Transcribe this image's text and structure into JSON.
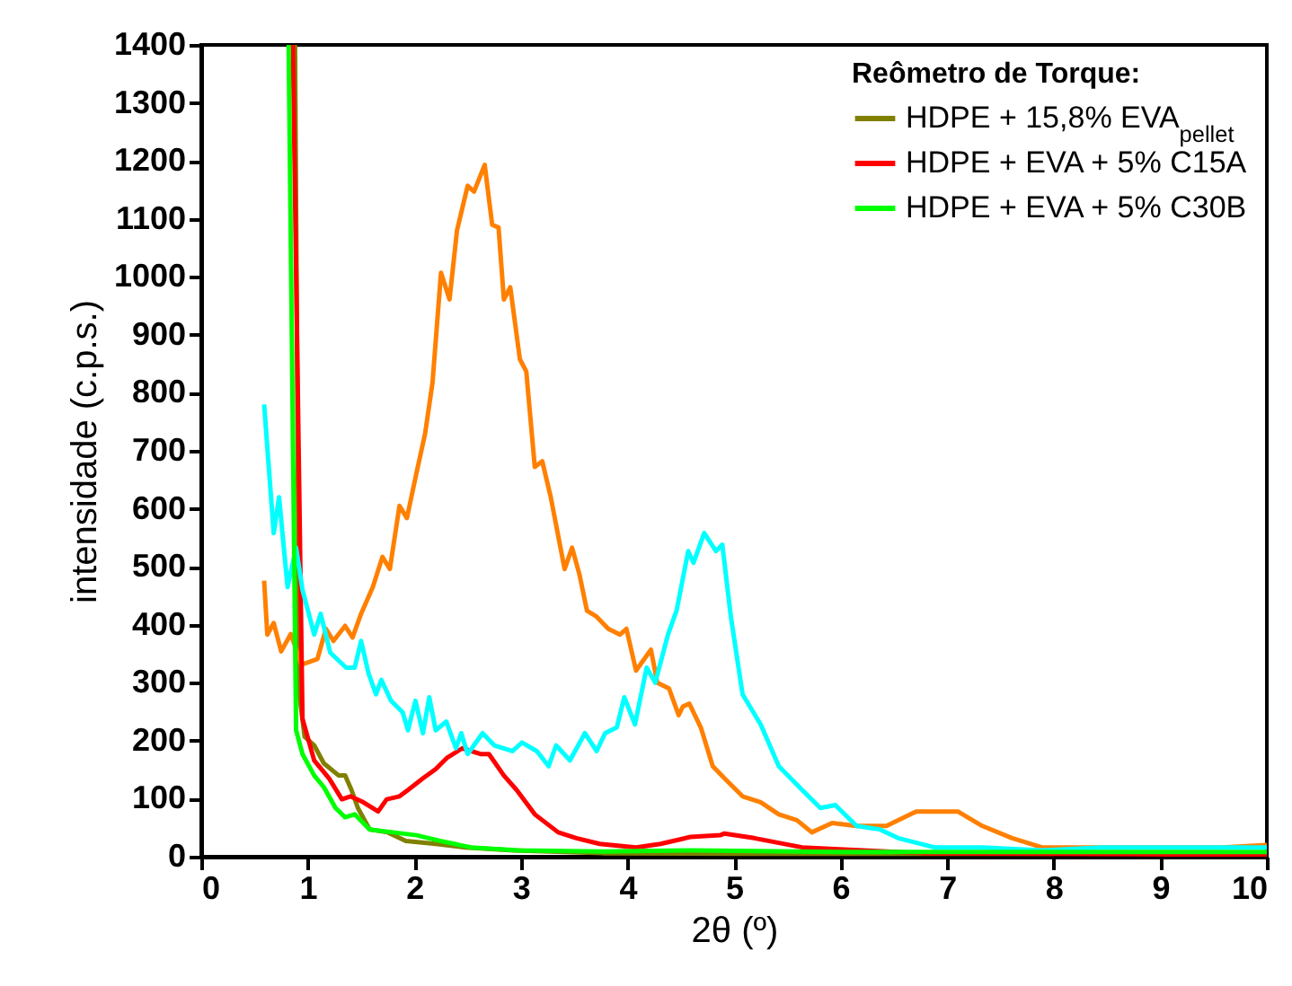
{
  "chart_data": {
    "type": "line",
    "xlabel": "2θ (º)",
    "ylabel": "intensidade (c.p.s.)",
    "legend_title": "Reômetro de Torque:",
    "legend": "top right",
    "grid": false,
    "xlim": [
      0,
      10
    ],
    "ylim": [
      0,
      1400
    ],
    "xticks": [
      0,
      1,
      2,
      3,
      4,
      5,
      6,
      7,
      8,
      9,
      10
    ],
    "yticks": [
      0,
      100,
      200,
      300,
      400,
      500,
      600,
      700,
      800,
      900,
      1000,
      1100,
      1200,
      1300,
      1400
    ],
    "series": [
      {
        "name": "HDPE + 15,8% EVA$_{pellet}$",
        "color": "#808000",
        "x": [
          0.88,
          0.92,
          0.97,
          1.06,
          1.15,
          1.29,
          1.35,
          1.41,
          1.47,
          1.58,
          1.75,
          1.92,
          2.2,
          2.48,
          2.93,
          3.77,
          5,
          6,
          7,
          8
        ],
        "values": [
          1400,
          280,
          207,
          192,
          161,
          140,
          140,
          115,
          84,
          47,
          42,
          27,
          22,
          16,
          11,
          6,
          5,
          5,
          5,
          5
        ]
      },
      {
        "color": "#ff8000",
        "x": [
          0.59,
          0.62,
          0.68,
          0.75,
          0.84,
          0.94,
          1.09,
          1.17,
          1.24,
          1.35,
          1.42,
          1.5,
          1.61,
          1.7,
          1.77,
          1.86,
          1.93,
          2.02,
          2.1,
          2.17,
          2.25,
          2.33,
          2.4,
          2.5,
          2.56,
          2.66,
          2.73,
          2.79,
          2.84,
          2.9,
          2.99,
          3.05,
          3.13,
          3.2,
          3.28,
          3.41,
          3.48,
          3.55,
          3.62,
          3.71,
          3.82,
          3.93,
          3.99,
          4.08,
          4.22,
          4.28,
          4.39,
          4.48,
          4.52,
          4.58,
          4.69,
          4.8,
          4.91,
          5.08,
          5.25,
          5.42,
          5.59,
          5.73,
          5.92,
          6.15,
          6.43,
          6.71,
          6.94,
          7.1,
          7.33,
          7.61,
          7.89,
          8.45,
          9.02,
          9.58,
          10
        ],
        "values": [
          476,
          383,
          403,
          354,
          384,
          331,
          341,
          393,
          372,
          398,
          378,
          419,
          465,
          517,
          496,
          605,
          584,
          662,
          729,
          817,
          1007,
          961,
          1080,
          1157,
          1147,
          1193,
          1090,
          1085,
          961,
          982,
          858,
          837,
          672,
          682,
          620,
          496,
          533,
          486,
          424,
          414,
          393,
          383,
          393,
          321,
          357,
          300,
          290,
          244,
          259,
          264,
          222,
          156,
          135,
          104,
          94,
          73,
          63,
          42,
          58,
          53,
          53,
          78,
          78,
          78,
          53,
          32,
          16,
          16,
          16,
          16,
          20
        ]
      },
      {
        "name": "HDPE + EVA + 5% C15A",
        "color": "#ff0000",
        "x": [
          0.86,
          0.95,
          1.06,
          1.2,
          1.32,
          1.4,
          1.52,
          1.66,
          1.74,
          1.86,
          1.94,
          2.08,
          2.2,
          2.31,
          2.45,
          2.62,
          2.7,
          2.84,
          2.96,
          3.13,
          3.35,
          3.52,
          3.74,
          4.08,
          4.31,
          4.59,
          4.87,
          4.91,
          5.19,
          5.64,
          6.21,
          6.77,
          7.89,
          10
        ],
        "values": [
          1400,
          238,
          166,
          135,
          99,
          104,
          94,
          78,
          99,
          104,
          115,
          135,
          151,
          171,
          187,
          177,
          177,
          140,
          115,
          73,
          42,
          32,
          22,
          16,
          22,
          34,
          37,
          40,
          32,
          16,
          11,
          6,
          5,
          3
        ]
      },
      {
        "color": "#00ffff",
        "x": [
          0.59,
          0.68,
          0.73,
          0.81,
          0.89,
          0.95,
          1.06,
          1.12,
          1.21,
          1.36,
          1.44,
          1.5,
          1.57,
          1.64,
          1.69,
          1.78,
          1.89,
          1.94,
          2.01,
          2.08,
          2.14,
          2.2,
          2.3,
          2.39,
          2.44,
          2.5,
          2.64,
          2.75,
          2.92,
          3.01,
          3.15,
          3.26,
          3.33,
          3.46,
          3.6,
          3.71,
          3.79,
          3.9,
          3.97,
          4.07,
          4.18,
          4.26,
          4.38,
          4.46,
          4.57,
          4.62,
          4.72,
          4.83,
          4.89,
          4.97,
          5.08,
          5.25,
          5.42,
          5.64,
          5.81,
          5.95,
          6.15,
          6.37,
          6.54,
          6.88,
          7.33,
          7.89,
          8.45,
          9.02,
          10
        ],
        "values": [
          780,
          558,
          620,
          465,
          533,
          460,
          383,
          419,
          352,
          326,
          326,
          372,
          316,
          280,
          305,
          269,
          249,
          218,
          269,
          213,
          275,
          218,
          233,
          187,
          213,
          177,
          213,
          192,
          182,
          197,
          182,
          156,
          192,
          166,
          213,
          182,
          213,
          223,
          275,
          228,
          326,
          300,
          383,
          424,
          527,
          507,
          558,
          527,
          538,
          414,
          280,
          228,
          156,
          115,
          84,
          89,
          53,
          47,
          32,
          16,
          16,
          11,
          16,
          16,
          16
        ]
      },
      {
        "name": "HDPE + EVA + 5% C30B",
        "color": "#00ff00",
        "x": [
          0.82,
          0.89,
          0.95,
          1.06,
          1.15,
          1.26,
          1.35,
          1.44,
          1.58,
          1.8,
          2.02,
          2.25,
          2.53,
          2.98,
          3.77,
          4.62,
          6,
          8,
          10
        ],
        "values": [
          1400,
          218,
          177,
          140,
          120,
          84,
          68,
          73,
          47,
          42,
          37,
          27,
          16,
          11,
          9,
          11,
          8,
          8,
          8
        ]
      }
    ]
  }
}
